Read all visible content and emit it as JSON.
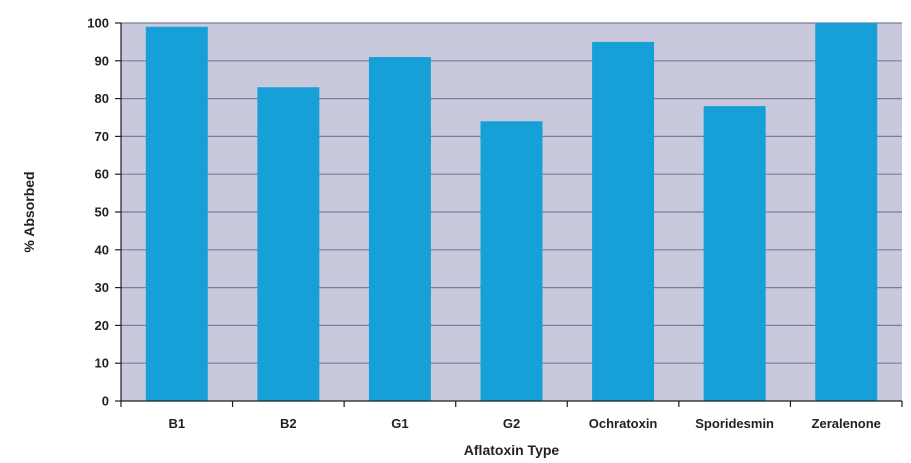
{
  "chart_data": {
    "type": "bar",
    "categories": [
      "B1",
      "B2",
      "G1",
      "G2",
      "Ochratoxin",
      "Sporidesmin",
      "Zeralenone"
    ],
    "values": [
      99,
      83,
      91,
      74,
      95,
      78,
      100
    ],
    "xlabel": "Aflatoxin Type",
    "ylabel": "% Absorbed",
    "ylim": [
      0,
      100
    ],
    "yticks": [
      0,
      10,
      20,
      30,
      40,
      50,
      60,
      70,
      80,
      90,
      100
    ],
    "grid": true,
    "colors": {
      "bar": "#17a0d8",
      "plot_background": "#c9c9dd",
      "gridline": "#7d7d95"
    }
  }
}
